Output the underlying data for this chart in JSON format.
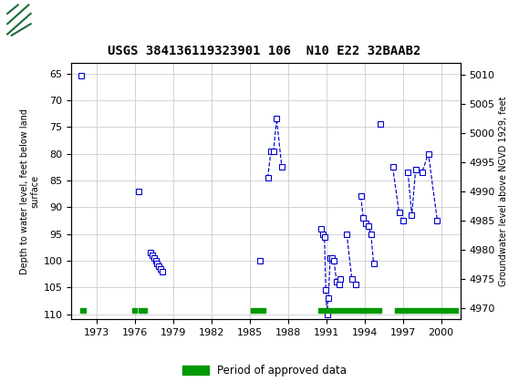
{
  "title": "USGS 384136119323901 106  N10 E22 32BAAB2",
  "ylabel_left": "Depth to water level, feet below land\nsurface",
  "ylabel_right": "Groundwater level above NGVD 1929, feet",
  "ylim_left_top": 63,
  "ylim_left_bottom": 111,
  "ylim_right_top": 5012,
  "ylim_right_bottom": 4968,
  "yticks_left": [
    65,
    70,
    75,
    80,
    85,
    90,
    95,
    100,
    105,
    110
  ],
  "yticks_right": [
    5010,
    5005,
    5000,
    4995,
    4990,
    4985,
    4980,
    4975,
    4970
  ],
  "xlim_left": 1971.0,
  "xlim_right": 2001.5,
  "xticks": [
    1973,
    1976,
    1979,
    1982,
    1985,
    1988,
    1991,
    1994,
    1997,
    2000
  ],
  "data_groups": [
    [
      [
        1971.8,
        65.5
      ]
    ],
    [
      [
        1976.3,
        87.0
      ]
    ],
    [
      [
        1977.2,
        98.5
      ],
      [
        1977.35,
        99.0
      ],
      [
        1977.5,
        99.5
      ],
      [
        1977.6,
        100.0
      ],
      [
        1977.7,
        100.5
      ],
      [
        1977.85,
        101.0
      ],
      [
        1978.0,
        101.5
      ],
      [
        1978.1,
        102.0
      ]
    ],
    [
      [
        1985.8,
        100.0
      ]
    ],
    [
      [
        1986.4,
        84.5
      ],
      [
        1986.65,
        79.5
      ],
      [
        1986.85,
        79.5
      ],
      [
        1987.1,
        73.5
      ],
      [
        1987.5,
        82.5
      ]
    ],
    [
      [
        1990.55,
        94.0
      ],
      [
        1990.7,
        95.0
      ],
      [
        1990.85,
        95.5
      ],
      [
        1990.95,
        105.5
      ],
      [
        1991.05,
        110.0
      ],
      [
        1991.15,
        107.0
      ],
      [
        1991.3,
        99.5
      ],
      [
        1991.45,
        99.5
      ],
      [
        1991.6,
        100.0
      ],
      [
        1991.8,
        104.0
      ],
      [
        1992.0,
        104.5
      ],
      [
        1992.1,
        103.5
      ]
    ],
    [
      [
        1992.6,
        95.0
      ],
      [
        1993.0,
        103.5
      ],
      [
        1993.3,
        104.5
      ]
    ],
    [
      [
        1993.7,
        88.0
      ],
      [
        1993.9,
        92.0
      ],
      [
        1994.1,
        93.0
      ],
      [
        1994.3,
        93.5
      ],
      [
        1994.5,
        95.0
      ],
      [
        1994.7,
        100.5
      ]
    ],
    [
      [
        1995.2,
        74.5
      ]
    ],
    [
      [
        1996.2,
        82.5
      ],
      [
        1996.7,
        91.0
      ],
      [
        1997.0,
        92.5
      ]
    ],
    [
      [
        1997.4,
        83.5
      ],
      [
        1997.7,
        91.5
      ],
      [
        1998.0,
        83.0
      ],
      [
        1998.5,
        83.5
      ],
      [
        1999.0,
        80.0
      ],
      [
        1999.7,
        92.5
      ]
    ]
  ],
  "approved_periods": [
    [
      1971.7,
      1972.1
    ],
    [
      1975.8,
      1976.1
    ],
    [
      1976.3,
      1976.9
    ],
    [
      1985.1,
      1986.2
    ],
    [
      1990.4,
      1995.3
    ],
    [
      1996.4,
      2001.3
    ]
  ],
  "header_color": "#1b6b3a",
  "line_color": "#0000cc",
  "marker_facecolor": "white",
  "marker_edgecolor": "#0000cc",
  "approved_color": "#009900",
  "grid_color": "#cccccc",
  "background_color": "#ffffff",
  "approved_bar_y_center": 109.3,
  "approved_bar_height": 0.9
}
